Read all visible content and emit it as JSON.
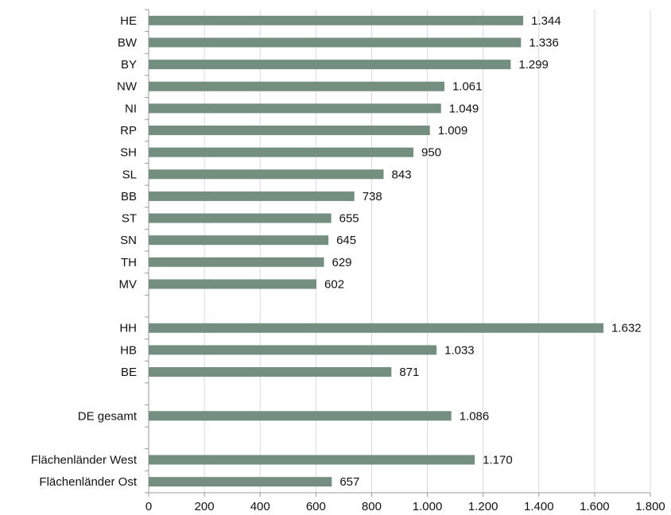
{
  "chart_data": {
    "type": "bar",
    "orientation": "horizontal",
    "title": "",
    "xlabel": "",
    "ylabel": "",
    "categories": [
      "HE",
      "BW",
      "BY",
      "NW",
      "NI",
      "RP",
      "SH",
      "SL",
      "BB",
      "ST",
      "SN",
      "TH",
      "MV",
      "",
      "HH",
      "HB",
      "BE",
      "",
      "DE gesamt",
      "",
      "Flächenländer West",
      "Flächenländer Ost"
    ],
    "values": [
      1344,
      1336,
      1299,
      1061,
      1049,
      1009,
      950,
      843,
      738,
      655,
      645,
      629,
      602,
      null,
      1632,
      1033,
      871,
      null,
      1086,
      null,
      1170,
      657
    ],
    "value_labels": [
      "1.344",
      "1.336",
      "1.299",
      "1.061",
      "1.049",
      "1.009",
      "950",
      "843",
      "738",
      "655",
      "645",
      "629",
      "602",
      "",
      "1.632",
      "1.033",
      "871",
      "",
      "1.086",
      "",
      "1.170",
      "657"
    ],
    "xlim": [
      0,
      1800
    ],
    "x_ticks": [
      0,
      200,
      400,
      600,
      800,
      1000,
      1200,
      1400,
      1600,
      1800
    ],
    "x_tick_labels": [
      "0",
      "200",
      "400",
      "600",
      "800",
      "1.000",
      "1.200",
      "1.400",
      "1.600",
      "1.800"
    ],
    "grid": "vertical",
    "legend": "none",
    "colors": {
      "bar": "#748e80",
      "grid": "#d9d9d9",
      "axis": "#9a9a9a",
      "text": "#111111"
    }
  }
}
